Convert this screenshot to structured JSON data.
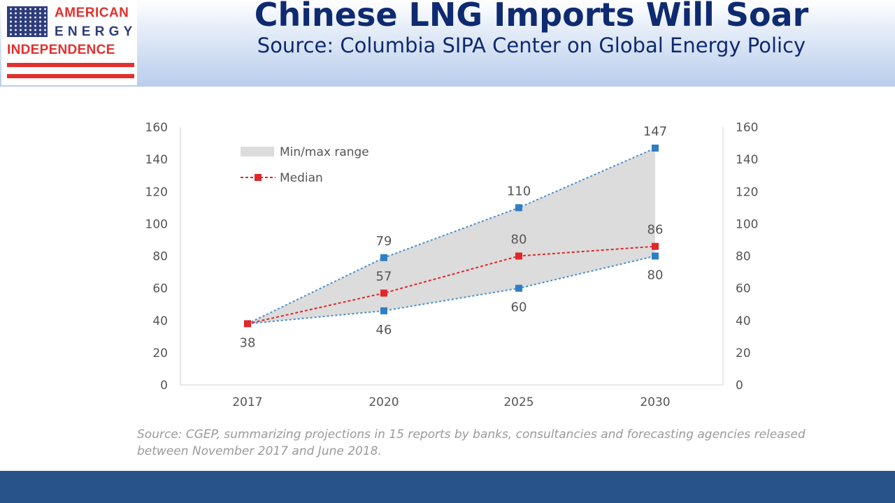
{
  "logo": {
    "line1": "AMERICAN",
    "line2": "ENERGY",
    "line3": "INDEPENDENCE",
    "colors": {
      "red": "#e2302e",
      "blue": "#2d3c7c"
    }
  },
  "header": {
    "title": "Chinese LNG Imports Will Soar",
    "subtitle": "Source: Columbia SIPA Center on Global Energy Policy"
  },
  "chart_data": {
    "type": "line",
    "categories": [
      "2017",
      "2020",
      "2025",
      "2030"
    ],
    "ylim": [
      0,
      160
    ],
    "yticks": [
      0,
      20,
      40,
      60,
      80,
      100,
      120,
      140,
      160
    ],
    "secondary_y_axis": true,
    "grid": false,
    "legend_position": "top-left",
    "range": {
      "name": "Min/max range",
      "min": [
        38,
        46,
        60,
        80
      ],
      "max": [
        38,
        79,
        110,
        147
      ],
      "min_labels": [
        "38",
        "46",
        "60",
        "80"
      ],
      "max_labels": [
        "",
        "79",
        "110",
        "147"
      ]
    },
    "series": [
      {
        "name": "Median",
        "values": [
          38,
          57,
          80,
          86
        ],
        "labels": [
          "",
          "57",
          "80",
          "86"
        ]
      }
    ],
    "colors": {
      "range_fill": "#dcdcdc",
      "range_line": "#4a8fcc",
      "marker_blue": "#2f7fc4",
      "median": "#e2262a"
    }
  },
  "footnote": "Source: CGEP, summarizing projections in 15 reports by banks, consultancies and forecasting agencies released between November 2017 and June 2018."
}
